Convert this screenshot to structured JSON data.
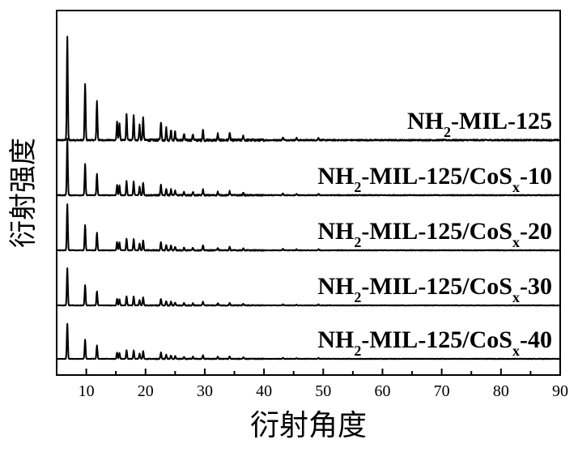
{
  "chart_data": {
    "type": "line",
    "xlabel": "衍射角度",
    "ylabel": "衍射强度",
    "xlim": [
      5,
      90
    ],
    "xticks": [
      10,
      20,
      30,
      40,
      50,
      60,
      70,
      80,
      90
    ],
    "yticks": [],
    "grid": false,
    "legend": "none",
    "line_color": "#000000",
    "peaks": [
      {
        "x": 6.8,
        "h": 1.0
      },
      {
        "x": 9.8,
        "h": 0.55
      },
      {
        "x": 11.8,
        "h": 0.38
      },
      {
        "x": 15.2,
        "h": 0.18
      },
      {
        "x": 15.6,
        "h": 0.17
      },
      {
        "x": 16.8,
        "h": 0.25
      },
      {
        "x": 18.0,
        "h": 0.24
      },
      {
        "x": 19.0,
        "h": 0.15
      },
      {
        "x": 19.6,
        "h": 0.22
      },
      {
        "x": 22.6,
        "h": 0.18
      },
      {
        "x": 23.5,
        "h": 0.12
      },
      {
        "x": 24.3,
        "h": 0.1
      },
      {
        "x": 25.0,
        "h": 0.08
      },
      {
        "x": 26.5,
        "h": 0.06
      },
      {
        "x": 28.0,
        "h": 0.06
      },
      {
        "x": 29.7,
        "h": 0.1
      },
      {
        "x": 32.2,
        "h": 0.06
      },
      {
        "x": 34.2,
        "h": 0.07
      },
      {
        "x": 36.5,
        "h": 0.04
      },
      {
        "x": 43.2,
        "h": 0.03
      },
      {
        "x": 45.5,
        "h": 0.02
      },
      {
        "x": 49.2,
        "h": 0.025
      }
    ],
    "series": [
      {
        "label_main": "NH",
        "label_sub": "2",
        "label_rest": "-MIL-125",
        "label_tail_sub": "",
        "label_tail": "",
        "intensity": 1.0
      },
      {
        "label_main": "NH",
        "label_sub": "2",
        "label_rest": "-MIL-125/CoS",
        "label_tail_sub": "x",
        "label_tail": "-10",
        "intensity": 0.55
      },
      {
        "label_main": "NH",
        "label_sub": "2",
        "label_rest": "-MIL-125/CoS",
        "label_tail_sub": "x",
        "label_tail": "-20",
        "intensity": 0.45
      },
      {
        "label_main": "NH",
        "label_sub": "2",
        "label_rest": "-MIL-125/CoS",
        "label_tail_sub": "x",
        "label_tail": "-30",
        "intensity": 0.36
      },
      {
        "label_main": "NH",
        "label_sub": "2",
        "label_rest": "-MIL-125/CoS",
        "label_tail_sub": "x",
        "label_tail": "-40",
        "intensity": 0.34
      }
    ]
  }
}
